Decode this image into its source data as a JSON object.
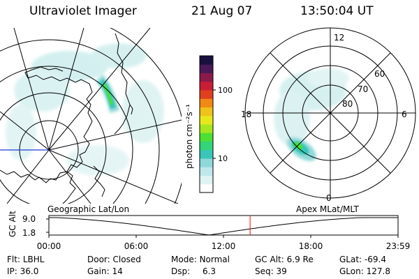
{
  "header": {
    "title": "Ultraviolet Imager",
    "date": "21 Aug 07",
    "time": "13:50:04 UT"
  },
  "colorbar": {
    "unit_label": "photon cm⁻²s⁻¹",
    "ticks": [
      {
        "label": "100",
        "value": 100
      },
      {
        "label": "10",
        "value": 10
      }
    ],
    "colors": [
      "#ffffff",
      "#dff3f3",
      "#bfe8ea",
      "#8fd8d8",
      "#39c6b8",
      "#33d47a",
      "#4ce033",
      "#a7e61f",
      "#e6e81c",
      "#f0c21a",
      "#f08a14",
      "#e0401e",
      "#c81e36",
      "#8c1a4a",
      "#4a1a58",
      "#1a1040"
    ]
  },
  "geo_panel": {
    "label": "Geographic Lat/Lon"
  },
  "polar_panel": {
    "label": "Apex  MLat/MLT",
    "mlt_labels": {
      "top": "12",
      "left": "18",
      "right": "6",
      "bottom": "0"
    },
    "lat_labels": [
      "60",
      "70",
      "80"
    ]
  },
  "timeline": {
    "y_label": "GC Alt",
    "y_ticks": [
      "9.0",
      "1.8"
    ],
    "x_ticks": [
      "00:00",
      "06:00",
      "12:00",
      "18:00",
      "23:59"
    ],
    "current_marker_hour": 13.83
  },
  "status": {
    "filt_label": "Flt:",
    "filt_value": "LBHL",
    "ip_label": "IP:",
    "ip_value": "36.0",
    "door_label": "Door:",
    "door_value": "Closed",
    "gain_label": "Gain:",
    "gain_value": "14",
    "mode_label": "Mode:",
    "mode_value": "Normal",
    "dsp_label": "Dsp:",
    "dsp_value": "6.3",
    "gcalt_label": "GC Alt:",
    "gcalt_value": "6.9 Re",
    "seq_label": "Seq:",
    "seq_value": "39",
    "glat_label": "GLat:",
    "glat_value": "-69.4",
    "glon_label": "GLon:",
    "glon_value": "127.8"
  },
  "colors": {
    "marker": "#ff0000",
    "coastline": "#000000",
    "meridian_blue": "#1f3cd6"
  }
}
